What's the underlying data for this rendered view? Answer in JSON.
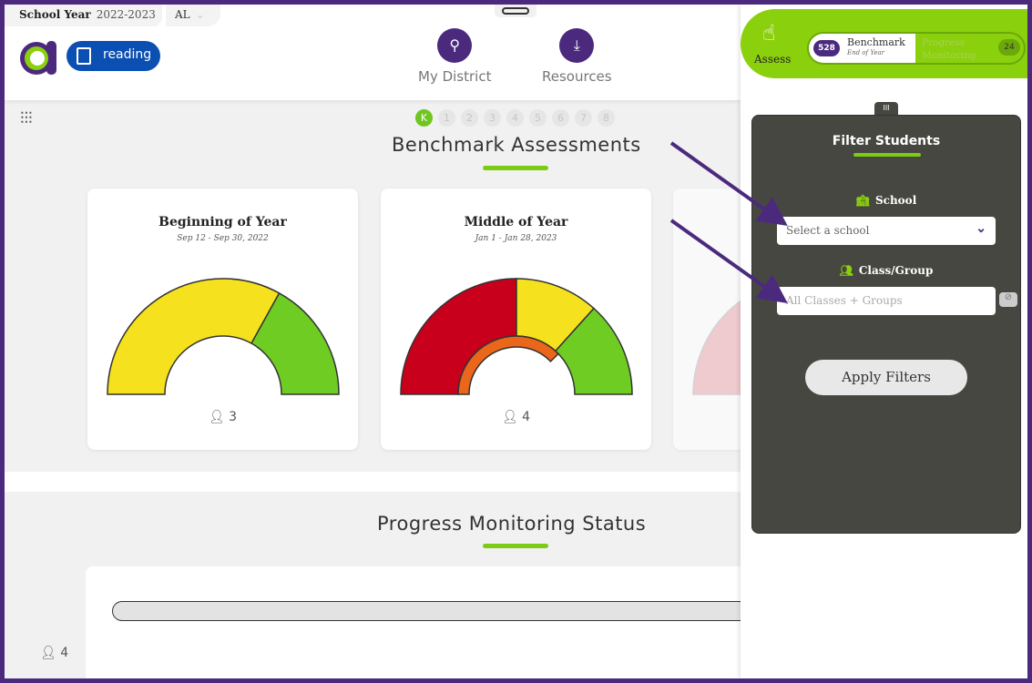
{
  "header": {
    "school_year_label": "School Year",
    "school_year": "2022-2023",
    "state": "AL",
    "subject": "reading",
    "nav": [
      {
        "label": "My District",
        "icon": "map-pin-icon"
      },
      {
        "label": "Resources",
        "icon": "download-doc-icon"
      }
    ]
  },
  "grades": [
    "K",
    "1",
    "2",
    "3",
    "4",
    "5",
    "6",
    "7",
    "8"
  ],
  "selected_grade": "K",
  "benchmark": {
    "title": "Benchmark Assessments",
    "cards": [
      {
        "title": "Beginning of Year",
        "dates": "Sep 12 - Sep 30, 2022",
        "count": "3"
      },
      {
        "title": "Middle of Year",
        "dates": "Jan 1 - Jan 28, 2023",
        "count": "4"
      }
    ]
  },
  "progress": {
    "title": "Progress Monitoring Status",
    "count": "4"
  },
  "assess": {
    "label": "Assess",
    "benchmark_count": "528",
    "benchmark_label": "Benchmark",
    "benchmark_sub": "End of Year",
    "pm_label": "Progress Monitoring",
    "pm_count": "24"
  },
  "filter": {
    "title": "Filter Students",
    "school_label": "School",
    "school_placeholder": "Select a school",
    "class_label": "Class/Group",
    "class_placeholder": "All Classes + Groups",
    "apply": "Apply Filters"
  },
  "colors": {
    "purple": "#4b2a7e",
    "green": "#8bd00c",
    "red": "#c8001c",
    "yellow": "#f5e11d",
    "gauge_green": "#6fcc23",
    "blue": "#0b4fb2"
  }
}
